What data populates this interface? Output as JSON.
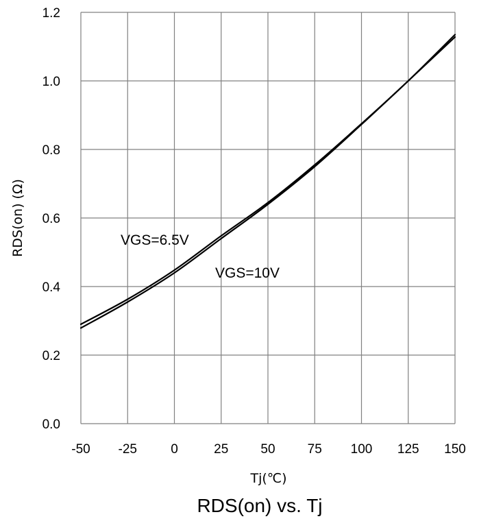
{
  "chart_data": {
    "type": "line",
    "title": "RDS(on) vs. Tj",
    "xlabel": "Tj(℃)",
    "ylabel": "RDS(on) (Ω)",
    "xlim": [
      -50,
      150
    ],
    "ylim": [
      0.0,
      1.2
    ],
    "x_ticks": [
      "-50",
      "-25",
      "0",
      "25",
      "50",
      "75",
      "100",
      "125",
      "150"
    ],
    "y_ticks": [
      "0.0",
      "0.2",
      "0.4",
      "0.6",
      "0.8",
      "1.0",
      "1.2"
    ],
    "grid": true,
    "series": [
      {
        "name": "VGS=6.5V",
        "x": [
          -50,
          -25,
          0,
          25,
          50,
          75,
          100,
          125,
          150
        ],
        "y": [
          0.29,
          0.363,
          0.448,
          0.548,
          0.645,
          0.755,
          0.875,
          1.0,
          1.135
        ]
      },
      {
        "name": "VGS=10V",
        "x": [
          -50,
          -25,
          0,
          25,
          50,
          75,
          100,
          125,
          150
        ],
        "y": [
          0.279,
          0.355,
          0.44,
          0.54,
          0.64,
          0.75,
          0.873,
          1.0,
          1.128
        ]
      }
    ]
  }
}
